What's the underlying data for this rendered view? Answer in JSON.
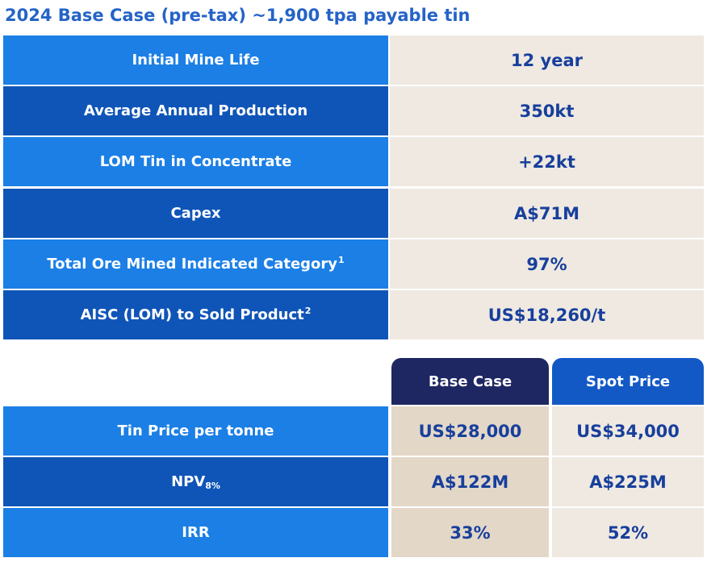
{
  "title": "2024 Base Case (pre-tax) ~1,900 tpa payable tin",
  "summary_rows": [
    {
      "label": "Initial Mine Life",
      "sup": "",
      "value": "12 year"
    },
    {
      "label": "Average Annual Production",
      "sup": "",
      "value": "350kt"
    },
    {
      "label": "LOM Tin in Concentrate",
      "sup": "",
      "value": "+22kt"
    },
    {
      "label": "Capex",
      "sup": "",
      "value": "A$71M"
    },
    {
      "label": "Total Ore Mined Indicated Category",
      "sup": "1",
      "value": "97%"
    },
    {
      "label": "AISC (LOM) to Sold Product",
      "sup": "2",
      "value": "US$18,260/t"
    }
  ],
  "scenario_headers": {
    "base": "Base Case",
    "spot": "Spot Price"
  },
  "scenario_rows": [
    {
      "label": "Tin Price per tonne",
      "sub": "",
      "base": "US$28,000",
      "spot": "US$34,000"
    },
    {
      "label": "NPV",
      "sub": "8%",
      "base": "A$122M",
      "spot": "A$225M"
    },
    {
      "label": "IRR",
      "sub": "",
      "base": "33%",
      "spot": "52%"
    }
  ],
  "colors": {
    "title": "#2563c7",
    "row_light": "#1b7fe6",
    "row_dark": "#0f55b8",
    "value_bg": "#efe9e1",
    "base_col_bg": "#e3d7c8",
    "base_header": "#1e2761",
    "spot_header": "#1359c6",
    "value_text": "#173f9c"
  }
}
